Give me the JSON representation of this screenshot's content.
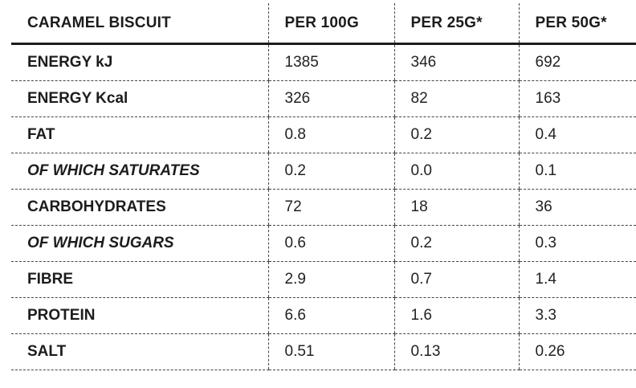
{
  "table": {
    "headers": [
      "CARAMEL BISCUIT",
      "PER 100G",
      "PER 25G*",
      "PER 50G*"
    ],
    "rows": [
      {
        "label": "ENERGY kJ",
        "italic": false,
        "per100": "1385",
        "per25": "346",
        "per50": "692"
      },
      {
        "label": "ENERGY Kcal",
        "italic": false,
        "per100": "326",
        "per25": "82",
        "per50": "163"
      },
      {
        "label": "FAT",
        "italic": false,
        "per100": "0.8",
        "per25": "0.2",
        "per50": "0.4"
      },
      {
        "label": "OF WHICH SATURATES",
        "italic": true,
        "per100": "0.2",
        "per25": "0.0",
        "per50": "0.1"
      },
      {
        "label": "CARBOHYDRATES",
        "italic": false,
        "per100": "72",
        "per25": "18",
        "per50": "36"
      },
      {
        "label": "OF WHICH SUGARS",
        "italic": true,
        "per100": "0.6",
        "per25": "0.2",
        "per50": "0.3"
      },
      {
        "label": "FIBRE",
        "italic": false,
        "per100": "2.9",
        "per25": "0.7",
        "per50": "1.4"
      },
      {
        "label": "PROTEIN",
        "italic": false,
        "per100": "6.6",
        "per25": "1.6",
        "per50": "3.3"
      },
      {
        "label": "SALT",
        "italic": false,
        "per100": "0.51",
        "per25": "0.13",
        "per50": "0.26"
      }
    ]
  }
}
